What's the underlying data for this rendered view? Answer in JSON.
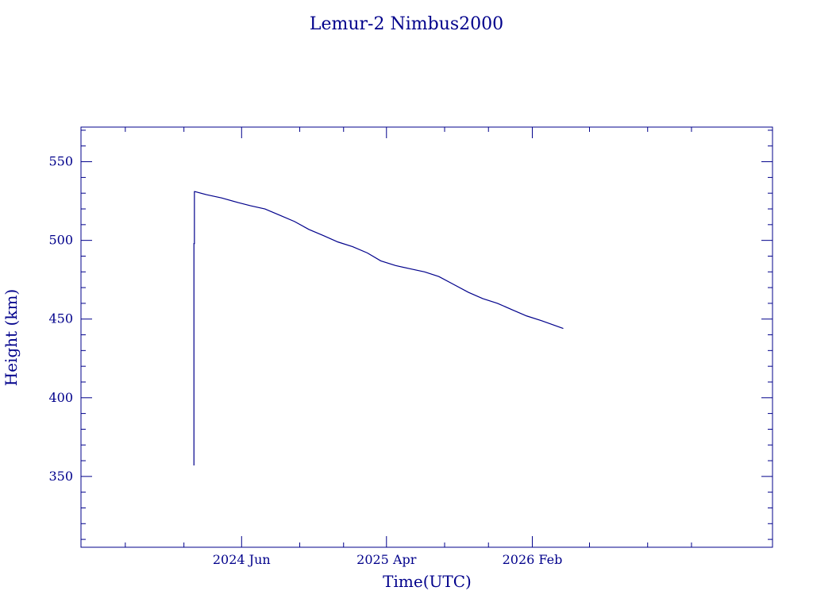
{
  "chart_data": {
    "type": "line",
    "title": "Lemur-2 Nimbus2000",
    "xlabel": "Time(UTC)",
    "ylabel": "Height (km)",
    "ylim": [
      305,
      572
    ],
    "xlim": [
      "2023-06-30",
      "2027-06-20"
    ],
    "x_ticks": [
      {
        "date": "2024-06-01",
        "label": "2024 Jun"
      },
      {
        "date": "2025-04-01",
        "label": "2025 Apr"
      },
      {
        "date": "2026-02-01",
        "label": "2026 Feb"
      }
    ],
    "x_minor_ticks": [
      "2023-10-01",
      "2024-02-01",
      "2024-10-01",
      "2025-01-01",
      "2025-08-01",
      "2025-11-01",
      "2026-06-01",
      "2026-10-01",
      "2027-01-01"
    ],
    "y_ticks": [
      350,
      400,
      450,
      500,
      550
    ],
    "y_minor_step": 10,
    "color": "#00008b",
    "grid": false,
    "series": [
      {
        "x": [
          "2024-02-22",
          "2024-02-22",
          "2024-02-23",
          "2024-02-23",
          "2024-02-24",
          "2024-03-20",
          "2024-04-20",
          "2024-05-25",
          "2024-06-20",
          "2024-07-20",
          "2024-08-20",
          "2024-09-20",
          "2024-10-20",
          "2024-11-20",
          "2024-12-20",
          "2025-01-20",
          "2025-02-20",
          "2025-03-20",
          "2025-04-20",
          "2025-05-20",
          "2025-06-20",
          "2025-07-20",
          "2025-08-20",
          "2025-09-20",
          "2025-10-20",
          "2025-11-20",
          "2025-12-20",
          "2026-01-20",
          "2026-02-20",
          "2026-03-20",
          "2026-04-07"
        ],
        "y": [
          357,
          498,
          498,
          531,
          531,
          529,
          527,
          524,
          522,
          520,
          516,
          512,
          507,
          503,
          499,
          496,
          492,
          487,
          484,
          482,
          480,
          477,
          472,
          467,
          463,
          460,
          456,
          452,
          449,
          446,
          444
        ]
      }
    ]
  }
}
